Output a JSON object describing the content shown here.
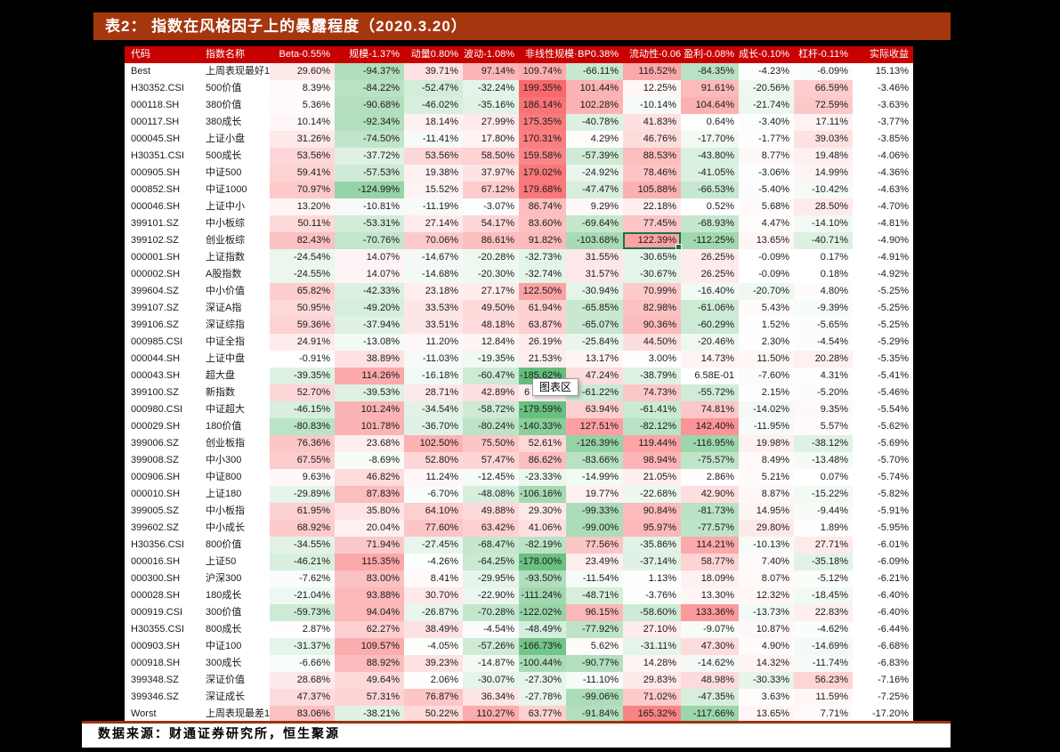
{
  "title": "表2： 指数在风格因子上的暴露程度（2020.3.20）",
  "footer": {
    "source": "数据来源：财通证券研究所，恒生聚源"
  },
  "tooltip": {
    "label": "图表区"
  },
  "heatmap": {
    "max_color": "#F8696B",
    "mid_color": "#FFFFFF",
    "min_color": "#63BE7B",
    "max_value": 200,
    "min_value": -186,
    "uncolored_columns": [
      "实际收益"
    ]
  },
  "table": {
    "columns": [
      "代码",
      "指数名称",
      "Beta-0.55%",
      "规模-1.37%",
      "动量0.80%",
      "波动-1.08%",
      "非线性规模·",
      "BP0.38%",
      "流动性-0.06",
      "盈利-0.08%",
      "成长-0.10%",
      "杠杆-0.11%",
      "实际收益"
    ],
    "selected_cell": {
      "row": 10,
      "value_col": 6,
      "value": "122.39%"
    },
    "tooltip_cell": {
      "row": 19,
      "value_col": 4,
      "visible_text": "6"
    },
    "rows": [
      {
        "code": "Best",
        "name": "上周表现最好1",
        "values": [
          "29.60%",
          "-94.37%",
          "39.71%",
          "97.14%",
          "109.74%",
          "-66.11%",
          "116.52%",
          "-84.35%",
          "-4.23%",
          "-6.09%",
          "15.13%"
        ]
      },
      {
        "code": "H30352.CSI",
        "name": "500价值",
        "values": [
          "8.39%",
          "-84.22%",
          "-52.47%",
          "-32.24%",
          "199.35%",
          "101.44%",
          "12.25%",
          "91.61%",
          "-20.56%",
          "66.59%",
          "-3.46%"
        ]
      },
      {
        "code": "000118.SH",
        "name": "380价值",
        "values": [
          "5.36%",
          "-90.68%",
          "-46.02%",
          "-35.16%",
          "186.14%",
          "102.28%",
          "-10.14%",
          "104.64%",
          "-21.74%",
          "72.59%",
          "-3.63%"
        ]
      },
      {
        "code": "000117.SH",
        "name": "380成长",
        "values": [
          "10.14%",
          "-92.34%",
          "18.14%",
          "27.99%",
          "175.35%",
          "-40.78%",
          "41.83%",
          "0.64%",
          "-3.40%",
          "17.11%",
          "-3.77%"
        ]
      },
      {
        "code": "000045.SH",
        "name": "上证小盘",
        "values": [
          "31.26%",
          "-74.50%",
          "-11.41%",
          "17.80%",
          "170.31%",
          "4.29%",
          "46.76%",
          "-17.70%",
          "-1.77%",
          "39.03%",
          "-3.85%"
        ]
      },
      {
        "code": "H30351.CSI",
        "name": "500成长",
        "values": [
          "53.56%",
          "-37.72%",
          "53.56%",
          "58.50%",
          "159.58%",
          "-57.39%",
          "88.53%",
          "-43.80%",
          "8.77%",
          "19.48%",
          "-4.06%"
        ]
      },
      {
        "code": "000905.SH",
        "name": "中证500",
        "values": [
          "59.41%",
          "-57.53%",
          "19.38%",
          "37.97%",
          "179.02%",
          "-24.92%",
          "78.46%",
          "-41.05%",
          "-3.06%",
          "14.99%",
          "-4.36%"
        ]
      },
      {
        "code": "000852.SH",
        "name": "中证1000",
        "values": [
          "70.97%",
          "-124.99%",
          "15.52%",
          "67.12%",
          "179.68%",
          "-47.47%",
          "105.88%",
          "-66.53%",
          "-5.40%",
          "-10.42%",
          "-4.63%"
        ]
      },
      {
        "code": "000046.SH",
        "name": "上证中小",
        "values": [
          "13.20%",
          "-10.81%",
          "-11.19%",
          "-3.07%",
          "86.74%",
          "9.29%",
          "22.18%",
          "0.52%",
          "5.68%",
          "28.50%",
          "-4.70%"
        ]
      },
      {
        "code": "399101.SZ",
        "name": "中小板综",
        "values": [
          "50.11%",
          "-53.31%",
          "27.14%",
          "54.17%",
          "83.60%",
          "-69.64%",
          "77.45%",
          "-68.93%",
          "4.47%",
          "-14.10%",
          "-4.81%"
        ]
      },
      {
        "code": "399102.SZ",
        "name": "创业板综",
        "values": [
          "82.43%",
          "-70.76%",
          "70.06%",
          "86.61%",
          "91.82%",
          "-103.68%",
          "122.39%",
          "-112.25%",
          "13.65%",
          "-40.71%",
          "-4.90%"
        ]
      },
      {
        "code": "000001.SH",
        "name": "上证指数",
        "values": [
          "-24.54%",
          "14.07%",
          "-14.67%",
          "-20.28%",
          "-32.73%",
          "31.55%",
          "-30.65%",
          "26.25%",
          "-0.09%",
          "0.17%",
          "-4.91%"
        ]
      },
      {
        "code": "000002.SH",
        "name": "A股指数",
        "values": [
          "-24.55%",
          "14.07%",
          "-14.68%",
          "-20.30%",
          "-32.74%",
          "31.57%",
          "-30.67%",
          "26.25%",
          "-0.09%",
          "0.18%",
          "-4.92%"
        ]
      },
      {
        "code": "399604.SZ",
        "name": "中小价值",
        "values": [
          "65.82%",
          "-42.33%",
          "23.18%",
          "27.17%",
          "122.50%",
          "-30.94%",
          "70.99%",
          "-16.40%",
          "-20.70%",
          "4.80%",
          "-5.25%"
        ]
      },
      {
        "code": "399107.SZ",
        "name": "深证A指",
        "values": [
          "50.95%",
          "-49.20%",
          "33.53%",
          "49.50%",
          "61.94%",
          "-65.85%",
          "82.98%",
          "-61.06%",
          "5.43%",
          "-9.39%",
          "-5.25%"
        ]
      },
      {
        "code": "399106.SZ",
        "name": "深证综指",
        "values": [
          "59.36%",
          "-37.94%",
          "33.51%",
          "48.18%",
          "63.87%",
          "-65.07%",
          "90.36%",
          "-60.29%",
          "1.52%",
          "-5.65%",
          "-5.25%"
        ]
      },
      {
        "code": "000985.CSI",
        "name": "中证全指",
        "values": [
          "24.91%",
          "-13.08%",
          "11.20%",
          "12.84%",
          "26.19%",
          "-25.84%",
          "44.50%",
          "-20.46%",
          "2.30%",
          "-4.54%",
          "-5.29%"
        ]
      },
      {
        "code": "000044.SH",
        "name": "上证中盘",
        "values": [
          "-0.91%",
          "38.89%",
          "-11.03%",
          "-19.35%",
          "21.53%",
          "13.17%",
          "3.00%",
          "14.73%",
          "11.50%",
          "20.28%",
          "-5.35%"
        ]
      },
      {
        "code": "000043.SH",
        "name": "超大盘",
        "values": [
          "-39.35%",
          "114.26%",
          "-16.18%",
          "-60.47%",
          "-185.62%",
          "47.24%",
          "-38.79%",
          "6.58E-01",
          "-7.60%",
          "4.31%",
          "-5.41%"
        ]
      },
      {
        "code": "399100.SZ",
        "name": "新指数",
        "values": [
          "52.70%",
          "-39.53%",
          "28.71%",
          "42.89%",
          "6",
          "-61.22%",
          "74.73%",
          "-55.72%",
          "2.15%",
          "-5.20%",
          "-5.46%"
        ]
      },
      {
        "code": "000980.CSI",
        "name": "中证超大",
        "values": [
          "-46.15%",
          "101.24%",
          "-34.54%",
          "-58.72%",
          "-179.59%",
          "63.94%",
          "-61.41%",
          "74.81%",
          "-14.02%",
          "9.35%",
          "-5.54%"
        ]
      },
      {
        "code": "000029.SH",
        "name": "180价值",
        "values": [
          "-80.83%",
          "101.78%",
          "-36.70%",
          "-80.24%",
          "-140.33%",
          "127.51%",
          "-82.12%",
          "142.40%",
          "-11.95%",
          "5.57%",
          "-5.62%"
        ]
      },
      {
        "code": "399006.SZ",
        "name": "创业板指",
        "values": [
          "76.36%",
          "23.68%",
          "102.50%",
          "75.50%",
          "52.61%",
          "-126.39%",
          "119.44%",
          "-116.95%",
          "19.98%",
          "-38.12%",
          "-5.69%"
        ]
      },
      {
        "code": "399008.SZ",
        "name": "中小300",
        "values": [
          "67.55%",
          "-8.69%",
          "52.80%",
          "57.47%",
          "86.62%",
          "-83.66%",
          "98.94%",
          "-75.57%",
          "8.49%",
          "-13.48%",
          "-5.70%"
        ]
      },
      {
        "code": "000906.SH",
        "name": "中证800",
        "values": [
          "9.63%",
          "46.82%",
          "11.24%",
          "-12.45%",
          "-23.33%",
          "-14.99%",
          "21.05%",
          "2.86%",
          "5.21%",
          "0.07%",
          "-5.74%"
        ]
      },
      {
        "code": "000010.SH",
        "name": "上证180",
        "values": [
          "-29.89%",
          "87.83%",
          "-6.70%",
          "-48.08%",
          "-106.16%",
          "19.77%",
          "-22.68%",
          "42.90%",
          "8.87%",
          "-15.22%",
          "-5.82%"
        ]
      },
      {
        "code": "399005.SZ",
        "name": "中小板指",
        "values": [
          "61.95%",
          "35.80%",
          "64.10%",
          "49.88%",
          "29.30%",
          "-99.33%",
          "90.84%",
          "-81.73%",
          "14.95%",
          "-9.44%",
          "-5.91%"
        ]
      },
      {
        "code": "399602.SZ",
        "name": "中小成长",
        "values": [
          "68.92%",
          "20.04%",
          "77.60%",
          "63.42%",
          "41.06%",
          "-99.00%",
          "95.97%",
          "-77.57%",
          "29.80%",
          "1.89%",
          "-5.95%"
        ]
      },
      {
        "code": "H30356.CSI",
        "name": "800价值",
        "values": [
          "-34.55%",
          "71.94%",
          "-27.45%",
          "-68.47%",
          "-82.19%",
          "77.56%",
          "-35.86%",
          "114.21%",
          "-10.13%",
          "27.71%",
          "-6.01%"
        ]
      },
      {
        "code": "000016.SH",
        "name": "上证50",
        "values": [
          "-46.21%",
          "115.35%",
          "-4.26%",
          "-64.25%",
          "-178.00%",
          "23.49%",
          "-37.14%",
          "58.77%",
          "7.40%",
          "-35.18%",
          "-6.09%"
        ]
      },
      {
        "code": "000300.SH",
        "name": "沪深300",
        "values": [
          "-7.62%",
          "83.00%",
          "8.41%",
          "-29.95%",
          "-93.50%",
          "-11.54%",
          "1.13%",
          "18.09%",
          "8.07%",
          "-5.12%",
          "-6.21%"
        ]
      },
      {
        "code": "000028.SH",
        "name": "180成长",
        "values": [
          "-21.04%",
          "93.88%",
          "30.70%",
          "-22.90%",
          "-111.24%",
          "-48.71%",
          "-3.76%",
          "13.30%",
          "12.32%",
          "-18.45%",
          "-6.40%"
        ]
      },
      {
        "code": "000919.CSI",
        "name": "300价值",
        "values": [
          "-59.73%",
          "94.04%",
          "-26.87%",
          "-70.28%",
          "-122.02%",
          "96.15%",
          "-58.60%",
          "133.36%",
          "-13.73%",
          "22.83%",
          "-6.40%"
        ]
      },
      {
        "code": "H30355.CSI",
        "name": "800成长",
        "values": [
          "2.87%",
          "62.27%",
          "38.49%",
          "-4.54%",
          "-48.49%",
          "-77.92%",
          "27.10%",
          "-9.07%",
          "10.87%",
          "-4.62%",
          "-6.44%"
        ]
      },
      {
        "code": "000903.SH",
        "name": "中证100",
        "values": [
          "-31.37%",
          "109.57%",
          "-4.05%",
          "-57.26%",
          "-166.73%",
          "5.62%",
          "-31.11%",
          "47.30%",
          "4.90%",
          "-14.69%",
          "-6.68%"
        ]
      },
      {
        "code": "000918.SH",
        "name": "300成长",
        "values": [
          "-6.66%",
          "88.92%",
          "39.23%",
          "-14.87%",
          "-100.44%",
          "-90.77%",
          "14.28%",
          "-14.62%",
          "14.32%",
          "-11.74%",
          "-6.83%"
        ]
      },
      {
        "code": "399348.SZ",
        "name": "深证价值",
        "values": [
          "28.68%",
          "49.64%",
          "2.06%",
          "-30.07%",
          "-27.30%",
          "-11.10%",
          "29.83%",
          "48.98%",
          "-30.33%",
          "56.23%",
          "-7.16%"
        ]
      },
      {
        "code": "399346.SZ",
        "name": "深证成长",
        "values": [
          "47.37%",
          "57.31%",
          "76.87%",
          "36.34%",
          "-27.78%",
          "-99.06%",
          "71.02%",
          "-47.35%",
          "3.63%",
          "11.59%",
          "-7.25%"
        ]
      },
      {
        "code": "Worst",
        "name": "上周表现最差1",
        "values": [
          "83.06%",
          "-38.21%",
          "50.22%",
          "110.27%",
          "63.77%",
          "-91.84%",
          "165.32%",
          "-117.66%",
          "13.65%",
          "7.71%",
          "-17.20%"
        ]
      }
    ]
  }
}
